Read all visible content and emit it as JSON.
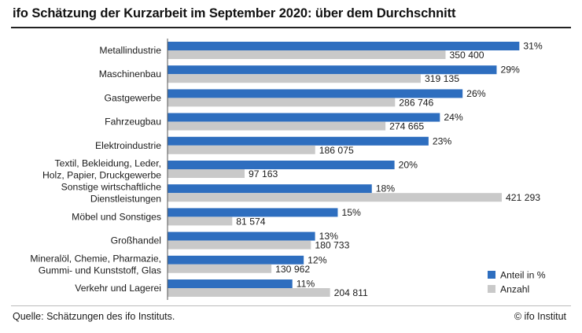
{
  "colors": {
    "share": "#2e6ebf",
    "count": "#c9c9c9"
  },
  "footer": {
    "source": "Quelle: Schätzungen des ifo Instituts.",
    "copyright": "© ifo Institut"
  },
  "chart_data": {
    "type": "bar",
    "orientation": "horizontal",
    "title": "ifo Schätzung der Kurzarbeit im September 2020: über dem Durchschnitt",
    "categories": [
      [
        "Metallindustrie"
      ],
      [
        "Maschinenbau"
      ],
      [
        "Gastgewerbe"
      ],
      [
        "Fahrzeugbau"
      ],
      [
        "Elektroindustrie"
      ],
      [
        "Textil, Bekleidung, Leder,",
        "Holz, Papier, Druckgewerbe"
      ],
      [
        "Sonstige wirtschaftliche",
        "Dienstleistungen"
      ],
      [
        "Möbel und Sonstiges"
      ],
      [
        "Großhandel"
      ],
      [
        "Mineralöl, Chemie, Pharmazie,",
        "Gummi- und Kunststoff, Glas"
      ],
      [
        "Verkehr und Lagerei"
      ]
    ],
    "series": [
      {
        "name": "Anteil in %",
        "values": [
          31,
          29,
          26,
          24,
          23,
          20,
          18,
          15,
          13,
          12,
          11
        ],
        "labels": [
          "31%",
          "29%",
          "26%",
          "24%",
          "23%",
          "20%",
          "18%",
          "15%",
          "13%",
          "12%",
          "11%"
        ]
      },
      {
        "name": "Anzahl",
        "values": [
          350400,
          319135,
          286746,
          274665,
          186075,
          97163,
          421293,
          81574,
          180733,
          130962,
          204811
        ],
        "labels": [
          "350 400",
          "319 135",
          "286 746",
          "274 665",
          "186 075",
          "97 163",
          "421 293",
          "81 574",
          "180 733",
          "130 962",
          "204 811"
        ]
      }
    ],
    "legend_position": "bottom-right",
    "grid": false
  }
}
